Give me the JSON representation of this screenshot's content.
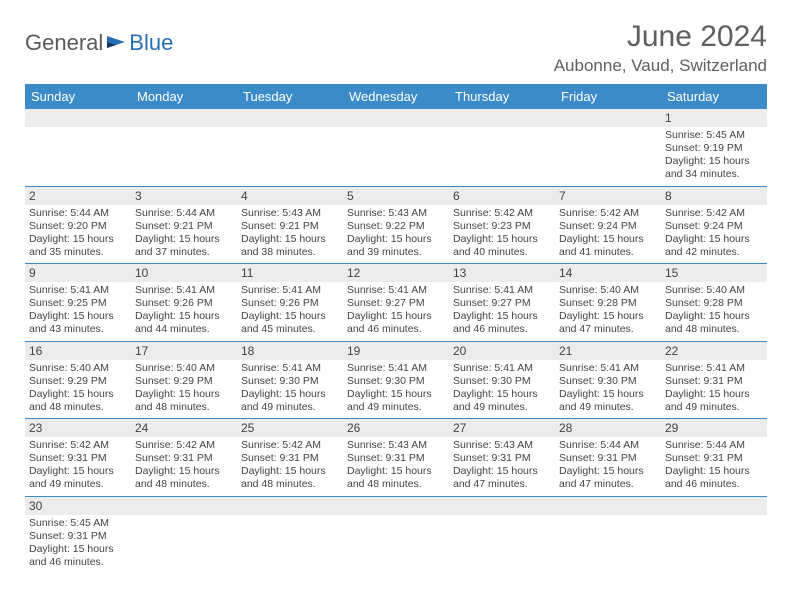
{
  "logo": {
    "part1": "General",
    "part2": "Blue"
  },
  "title": "June 2024",
  "location": "Aubonne, Vaud, Switzerland",
  "colors": {
    "header_bg": "#3b8bc9",
    "header_text": "#ffffff",
    "daynum_bg": "#ececec",
    "border": "#3b8bc9",
    "logo_gray": "#5a5a5a",
    "logo_blue": "#2a6fb5",
    "title_gray": "#5f5f5f",
    "text": "#444444"
  },
  "day_headers": [
    "Sunday",
    "Monday",
    "Tuesday",
    "Wednesday",
    "Thursday",
    "Friday",
    "Saturday"
  ],
  "weeks": [
    [
      {
        "n": "",
        "lines": []
      },
      {
        "n": "",
        "lines": []
      },
      {
        "n": "",
        "lines": []
      },
      {
        "n": "",
        "lines": []
      },
      {
        "n": "",
        "lines": []
      },
      {
        "n": "",
        "lines": []
      },
      {
        "n": "1",
        "lines": [
          "Sunrise: 5:45 AM",
          "Sunset: 9:19 PM",
          "Daylight: 15 hours and 34 minutes."
        ]
      }
    ],
    [
      {
        "n": "2",
        "lines": [
          "Sunrise: 5:44 AM",
          "Sunset: 9:20 PM",
          "Daylight: 15 hours and 35 minutes."
        ]
      },
      {
        "n": "3",
        "lines": [
          "Sunrise: 5:44 AM",
          "Sunset: 9:21 PM",
          "Daylight: 15 hours and 37 minutes."
        ]
      },
      {
        "n": "4",
        "lines": [
          "Sunrise: 5:43 AM",
          "Sunset: 9:21 PM",
          "Daylight: 15 hours and 38 minutes."
        ]
      },
      {
        "n": "5",
        "lines": [
          "Sunrise: 5:43 AM",
          "Sunset: 9:22 PM",
          "Daylight: 15 hours and 39 minutes."
        ]
      },
      {
        "n": "6",
        "lines": [
          "Sunrise: 5:42 AM",
          "Sunset: 9:23 PM",
          "Daylight: 15 hours and 40 minutes."
        ]
      },
      {
        "n": "7",
        "lines": [
          "Sunrise: 5:42 AM",
          "Sunset: 9:24 PM",
          "Daylight: 15 hours and 41 minutes."
        ]
      },
      {
        "n": "8",
        "lines": [
          "Sunrise: 5:42 AM",
          "Sunset: 9:24 PM",
          "Daylight: 15 hours and 42 minutes."
        ]
      }
    ],
    [
      {
        "n": "9",
        "lines": [
          "Sunrise: 5:41 AM",
          "Sunset: 9:25 PM",
          "Daylight: 15 hours and 43 minutes."
        ]
      },
      {
        "n": "10",
        "lines": [
          "Sunrise: 5:41 AM",
          "Sunset: 9:26 PM",
          "Daylight: 15 hours and 44 minutes."
        ]
      },
      {
        "n": "11",
        "lines": [
          "Sunrise: 5:41 AM",
          "Sunset: 9:26 PM",
          "Daylight: 15 hours and 45 minutes."
        ]
      },
      {
        "n": "12",
        "lines": [
          "Sunrise: 5:41 AM",
          "Sunset: 9:27 PM",
          "Daylight: 15 hours and 46 minutes."
        ]
      },
      {
        "n": "13",
        "lines": [
          "Sunrise: 5:41 AM",
          "Sunset: 9:27 PM",
          "Daylight: 15 hours and 46 minutes."
        ]
      },
      {
        "n": "14",
        "lines": [
          "Sunrise: 5:40 AM",
          "Sunset: 9:28 PM",
          "Daylight: 15 hours and 47 minutes."
        ]
      },
      {
        "n": "15",
        "lines": [
          "Sunrise: 5:40 AM",
          "Sunset: 9:28 PM",
          "Daylight: 15 hours and 48 minutes."
        ]
      }
    ],
    [
      {
        "n": "16",
        "lines": [
          "Sunrise: 5:40 AM",
          "Sunset: 9:29 PM",
          "Daylight: 15 hours and 48 minutes."
        ]
      },
      {
        "n": "17",
        "lines": [
          "Sunrise: 5:40 AM",
          "Sunset: 9:29 PM",
          "Daylight: 15 hours and 48 minutes."
        ]
      },
      {
        "n": "18",
        "lines": [
          "Sunrise: 5:41 AM",
          "Sunset: 9:30 PM",
          "Daylight: 15 hours and 49 minutes."
        ]
      },
      {
        "n": "19",
        "lines": [
          "Sunrise: 5:41 AM",
          "Sunset: 9:30 PM",
          "Daylight: 15 hours and 49 minutes."
        ]
      },
      {
        "n": "20",
        "lines": [
          "Sunrise: 5:41 AM",
          "Sunset: 9:30 PM",
          "Daylight: 15 hours and 49 minutes."
        ]
      },
      {
        "n": "21",
        "lines": [
          "Sunrise: 5:41 AM",
          "Sunset: 9:30 PM",
          "Daylight: 15 hours and 49 minutes."
        ]
      },
      {
        "n": "22",
        "lines": [
          "Sunrise: 5:41 AM",
          "Sunset: 9:31 PM",
          "Daylight: 15 hours and 49 minutes."
        ]
      }
    ],
    [
      {
        "n": "23",
        "lines": [
          "Sunrise: 5:42 AM",
          "Sunset: 9:31 PM",
          "Daylight: 15 hours and 49 minutes."
        ]
      },
      {
        "n": "24",
        "lines": [
          "Sunrise: 5:42 AM",
          "Sunset: 9:31 PM",
          "Daylight: 15 hours and 48 minutes."
        ]
      },
      {
        "n": "25",
        "lines": [
          "Sunrise: 5:42 AM",
          "Sunset: 9:31 PM",
          "Daylight: 15 hours and 48 minutes."
        ]
      },
      {
        "n": "26",
        "lines": [
          "Sunrise: 5:43 AM",
          "Sunset: 9:31 PM",
          "Daylight: 15 hours and 48 minutes."
        ]
      },
      {
        "n": "27",
        "lines": [
          "Sunrise: 5:43 AM",
          "Sunset: 9:31 PM",
          "Daylight: 15 hours and 47 minutes."
        ]
      },
      {
        "n": "28",
        "lines": [
          "Sunrise: 5:44 AM",
          "Sunset: 9:31 PM",
          "Daylight: 15 hours and 47 minutes."
        ]
      },
      {
        "n": "29",
        "lines": [
          "Sunrise: 5:44 AM",
          "Sunset: 9:31 PM",
          "Daylight: 15 hours and 46 minutes."
        ]
      }
    ],
    [
      {
        "n": "30",
        "lines": [
          "Sunrise: 5:45 AM",
          "Sunset: 9:31 PM",
          "Daylight: 15 hours and 46 minutes."
        ]
      },
      {
        "n": "",
        "lines": []
      },
      {
        "n": "",
        "lines": []
      },
      {
        "n": "",
        "lines": []
      },
      {
        "n": "",
        "lines": []
      },
      {
        "n": "",
        "lines": []
      },
      {
        "n": "",
        "lines": []
      }
    ]
  ]
}
